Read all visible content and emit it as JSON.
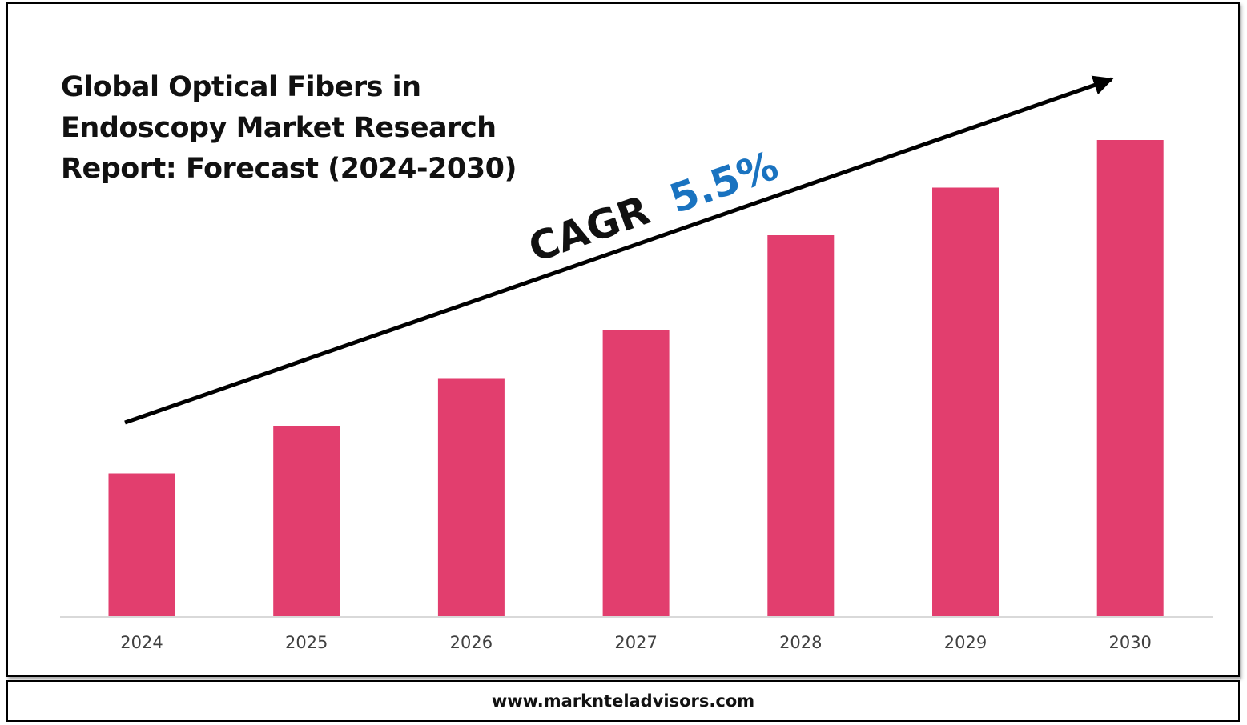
{
  "chart_data": {
    "type": "bar",
    "title": "Global Optical Fibers in Endoscopy Market Research Report: Forecast (2024-2030)",
    "categories": [
      "2024",
      "2025",
      "2026",
      "2027",
      "2028",
      "2029",
      "2030"
    ],
    "values": [
      30,
      40,
      50,
      60,
      80,
      90,
      100
    ],
    "ylim": [
      0,
      100
    ],
    "grid": false,
    "legend": "none",
    "annotation": {
      "prefix": "CAGR",
      "value": "5.5%"
    }
  },
  "colors": {
    "bar": "#e23e6e",
    "cagr_value": "#1a73c0",
    "text": "#111111",
    "axis": "#d9d9d9"
  },
  "footer": {
    "url": "www.marknteladvisors.com"
  }
}
